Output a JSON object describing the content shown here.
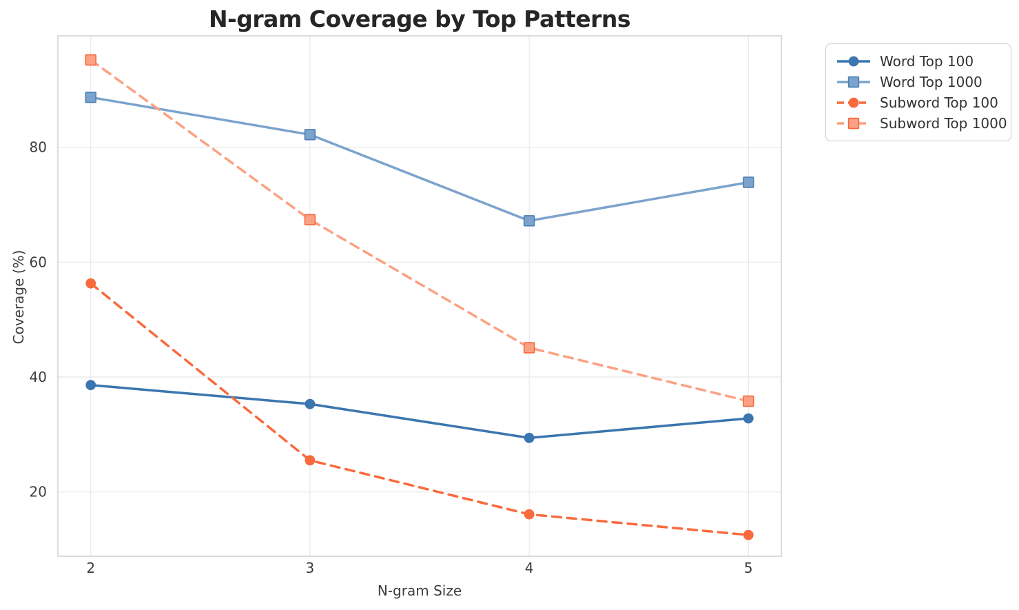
{
  "chart_data": {
    "type": "line",
    "title": "N-gram Coverage by Top Patterns",
    "xlabel": "N-gram Size",
    "ylabel": "Coverage (%)",
    "x": [
      2,
      3,
      4,
      5
    ],
    "x_tick_labels": [
      "2",
      "3",
      "4",
      "5"
    ],
    "y_ticks": [
      20,
      40,
      60,
      80
    ],
    "y_tick_labels": [
      "20",
      "40",
      "60",
      "80"
    ],
    "xlim": [
      1.85,
      5.15
    ],
    "ylim": [
      8.8,
      99.4
    ],
    "grid": true,
    "legend_position": "outside-upper-right",
    "series": [
      {
        "name": "Word Top 100",
        "values": [
          38.6,
          35.3,
          29.4,
          32.8
        ],
        "color": "#3b76af",
        "line_style": "solid",
        "marker": "circle"
      },
      {
        "name": "Word Top 1000",
        "values": [
          88.7,
          82.2,
          67.2,
          73.9
        ],
        "color": "#7ba3cc",
        "line_style": "solid",
        "marker": "square",
        "marker_edge": "#4d7fb3"
      },
      {
        "name": "Subword Top 100",
        "values": [
          56.3,
          25.5,
          16.1,
          12.5
        ],
        "color": "#f96a3d",
        "line_style": "dashed",
        "marker": "circle"
      },
      {
        "name": "Subword Top 1000",
        "values": [
          95.2,
          67.4,
          45.1,
          35.8
        ],
        "color": "#fca183",
        "line_style": "dashed",
        "marker": "square",
        "marker_edge": "#f4683c"
      }
    ]
  },
  "style_colors": {
    "grid": "#e8e8e8",
    "spine": "#cccccc",
    "title_text": "#262626",
    "tick_text": "#3d3d3d"
  }
}
